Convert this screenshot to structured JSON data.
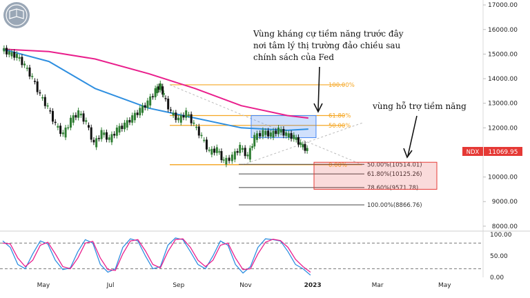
{
  "chart_data": {
    "type": "line",
    "symbol": "NDX",
    "last_price": "11069.95",
    "x_labels": [
      "May",
      "Jul",
      "Sep",
      "Nov",
      "2023",
      "Mar",
      "May"
    ],
    "y_ticks": [
      "17000.00",
      "16000.00",
      "15000.00",
      "14000.00",
      "13000.00",
      "12000.00",
      "10000.00",
      "9000.00",
      "8000.00"
    ],
    "ylim": [
      7800,
      17200
    ],
    "price_series": {
      "x": [
        "2022-03-25",
        "2022-04-01",
        "2022-04-08",
        "2022-04-15",
        "2022-04-22",
        "2022-04-29",
        "2022-05-06",
        "2022-05-13",
        "2022-05-20",
        "2022-05-27",
        "2022-06-03",
        "2022-06-10",
        "2022-06-17",
        "2022-06-24",
        "2022-07-01",
        "2022-07-08",
        "2022-07-15",
        "2022-07-22",
        "2022-07-29",
        "2022-08-05",
        "2022-08-12",
        "2022-08-16",
        "2022-08-19",
        "2022-08-26",
        "2022-09-02",
        "2022-09-09",
        "2022-09-16",
        "2022-09-23",
        "2022-09-30",
        "2022-10-07",
        "2022-10-13",
        "2022-10-21",
        "2022-10-28",
        "2022-11-04",
        "2022-11-10",
        "2022-11-18",
        "2022-11-25",
        "2022-12-02",
        "2022-12-09",
        "2022-12-16",
        "2022-12-22",
        "2022-12-28"
      ],
      "values": [
        15200,
        15000,
        14900,
        14500,
        14000,
        13300,
        12800,
        12100,
        11700,
        12300,
        12600,
        12200,
        11300,
        11800,
        11500,
        11900,
        12100,
        12400,
        12700,
        13000,
        13500,
        13700,
        13300,
        12600,
        12300,
        12600,
        12100,
        11600,
        11000,
        11100,
        10600,
        10800,
        11200,
        10800,
        11600,
        11800,
        11700,
        11900,
        11700,
        11600,
        11300,
        11070
      ]
    },
    "ma_pink": {
      "x": [
        "2022-03-25",
        "2022-05-06",
        "2022-06-17",
        "2022-08-05",
        "2022-09-16",
        "2022-10-28",
        "2022-12-09",
        "2022-12-28"
      ],
      "values": [
        15200,
        15100,
        14800,
        14200,
        13600,
        12900,
        12500,
        12400
      ]
    },
    "ma_blue": {
      "x": [
        "2022-03-25",
        "2022-05-06",
        "2022-06-17",
        "2022-08-05",
        "2022-09-16",
        "2022-10-28",
        "2022-12-09",
        "2022-12-28"
      ],
      "values": [
        15200,
        14700,
        13600,
        12800,
        12400,
        12000,
        11900,
        11950
      ]
    },
    "fib_up": [
      {
        "label": "100.00%",
        "value": 13750
      },
      {
        "label": "61.80%",
        "value": 12500
      },
      {
        "label": "50.00%",
        "value": 12100
      },
      {
        "label": "0.00%",
        "value": 10500
      }
    ],
    "fib_down": [
      {
        "label": "50.00%(10514.01)",
        "value": 10514.01
      },
      {
        "label": "61.80%(10125.26)",
        "value": 10125.26
      },
      {
        "label": "78.60%(9571.78)",
        "value": 9571.78
      },
      {
        "label": "100.00%(8866.76)",
        "value": 8866.76
      }
    ],
    "resistance_zone": {
      "y_range": [
        11600,
        12500
      ],
      "x_range": [
        "2022-11-01",
        "2022-12-30"
      ]
    },
    "support_zone": {
      "y_range": [
        9500,
        10600
      ],
      "x_range": [
        "2022-12-22",
        "2023-02-28"
      ]
    },
    "annotations": {
      "resistance": [
        "Vùng kháng cự tiềm năng trước đây",
        "nơi tâm lý thị trường đảo chiều sau",
        "chính sách của Fed"
      ],
      "support": "vùng hỗ trợ tiềm năng"
    },
    "stoch": {
      "y_ticks": [
        "100.00",
        "50.00",
        "0.00"
      ],
      "levels": [
        80,
        20
      ],
      "k": [
        85,
        70,
        30,
        20,
        55,
        85,
        78,
        40,
        18,
        22,
        60,
        88,
        80,
        30,
        12,
        20,
        70,
        90,
        85,
        50,
        20,
        25,
        75,
        92,
        88,
        60,
        30,
        20,
        50,
        85,
        75,
        30,
        10,
        25,
        70,
        90,
        88,
        85,
        60,
        30,
        20,
        5
      ],
      "d": [
        80,
        78,
        45,
        25,
        40,
        75,
        82,
        55,
        25,
        20,
        45,
        80,
        84,
        45,
        18,
        16,
        55,
        85,
        88,
        62,
        30,
        22,
        60,
        88,
        90,
        70,
        40,
        25,
        40,
        75,
        80,
        45,
        18,
        20,
        55,
        82,
        89,
        86,
        70,
        42,
        25,
        12
      ]
    }
  }
}
